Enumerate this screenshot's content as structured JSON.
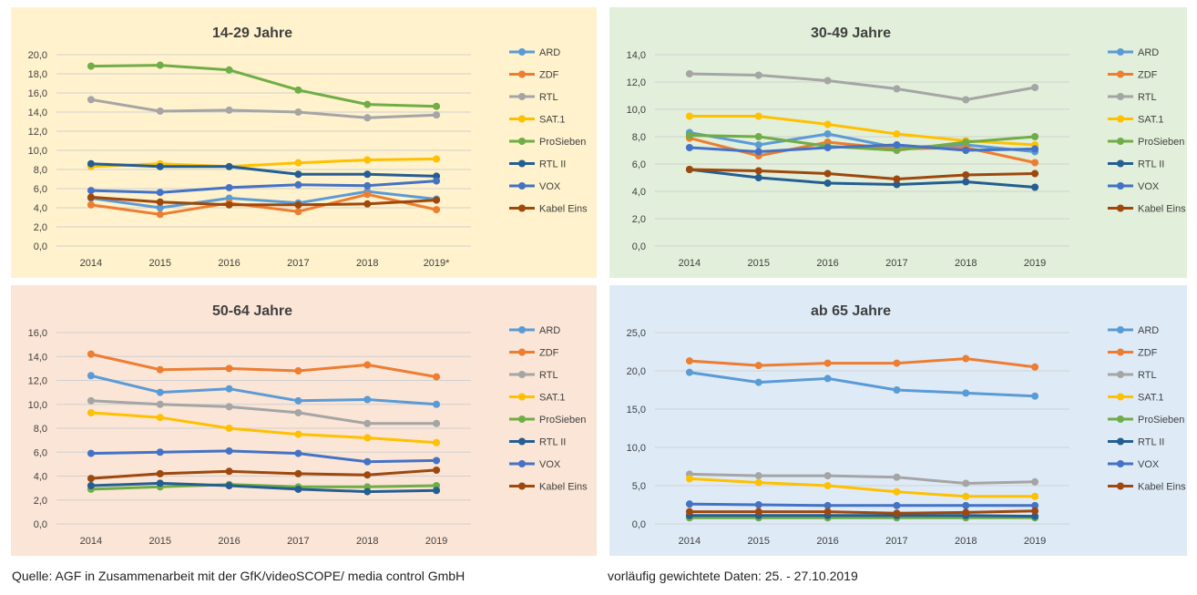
{
  "colors": {
    "ARD": "#5b9bd5",
    "ZDF": "#ed7d31",
    "RTL": "#a5a5a5",
    "SAT.1": "#ffc000",
    "ProSieben": "#70ad47",
    "RTL II": "#255e91",
    "VOX": "#4472c4",
    "Kabel Eins": "#9e480e"
  },
  "footer": {
    "source": "Quelle: AGF in Zusammenarbeit mit der GfK/videoSCOPE/ media control GmbH",
    "note": "vorläufig gewichtete Daten: 25. - 27.10.2019"
  },
  "chart_data": [
    {
      "type": "line",
      "title": "14-29 Jahre",
      "background": "#fff2cc",
      "categories": [
        "2014",
        "2015",
        "2016",
        "2017",
        "2018",
        "2019*"
      ],
      "ylim": [
        0,
        20
      ],
      "yticks": [
        "0,0",
        "2,0",
        "4,0",
        "6,0",
        "8,0",
        "10,0",
        "12,0",
        "14,0",
        "16,0",
        "18,0",
        "20,0"
      ],
      "xlabel": "",
      "ylabel": "",
      "legend_position": "right",
      "series": [
        {
          "name": "ARD",
          "values": [
            5.0,
            4.0,
            5.0,
            4.5,
            5.7,
            4.9
          ]
        },
        {
          "name": "ZDF",
          "values": [
            4.3,
            3.3,
            4.5,
            3.6,
            5.4,
            3.8
          ]
        },
        {
          "name": "RTL",
          "values": [
            15.3,
            14.1,
            14.2,
            14.0,
            13.4,
            13.7
          ]
        },
        {
          "name": "SAT.1",
          "values": [
            8.3,
            8.6,
            8.3,
            8.7,
            9.0,
            9.1
          ]
        },
        {
          "name": "ProSieben",
          "values": [
            18.8,
            18.9,
            18.4,
            16.3,
            14.8,
            14.6
          ]
        },
        {
          "name": "RTL II",
          "values": [
            8.6,
            8.3,
            8.3,
            7.5,
            7.5,
            7.3
          ]
        },
        {
          "name": "VOX",
          "values": [
            5.8,
            5.6,
            6.1,
            6.4,
            6.3,
            6.8
          ]
        },
        {
          "name": "Kabel Eins",
          "values": [
            5.1,
            4.6,
            4.3,
            4.3,
            4.4,
            4.8
          ]
        }
      ]
    },
    {
      "type": "line",
      "title": "30-49 Jahre",
      "background": "#e2efda",
      "categories": [
        "2014",
        "2015",
        "2016",
        "2017",
        "2018",
        "2019"
      ],
      "ylim": [
        0,
        14
      ],
      "yticks": [
        "0,0",
        "2,0",
        "4,0",
        "6,0",
        "8,0",
        "10,0",
        "12,0",
        "14,0"
      ],
      "xlabel": "",
      "ylabel": "",
      "legend_position": "right",
      "series": [
        {
          "name": "ARD",
          "values": [
            8.3,
            7.4,
            8.2,
            7.2,
            7.4,
            6.9
          ]
        },
        {
          "name": "ZDF",
          "values": [
            7.9,
            6.6,
            7.6,
            7.1,
            7.2,
            6.1
          ]
        },
        {
          "name": "RTL",
          "values": [
            12.6,
            12.5,
            12.1,
            11.5,
            10.7,
            11.6
          ]
        },
        {
          "name": "SAT.1",
          "values": [
            9.5,
            9.5,
            8.9,
            8.2,
            7.7,
            7.4
          ]
        },
        {
          "name": "ProSieben",
          "values": [
            8.1,
            8.0,
            7.3,
            7.0,
            7.6,
            8.0
          ]
        },
        {
          "name": "RTL II",
          "values": [
            5.6,
            5.0,
            4.6,
            4.5,
            4.7,
            4.3
          ]
        },
        {
          "name": "VOX",
          "values": [
            7.2,
            6.9,
            7.2,
            7.4,
            7.0,
            7.1
          ]
        },
        {
          "name": "Kabel Eins",
          "values": [
            5.6,
            5.5,
            5.3,
            4.9,
            5.2,
            5.3
          ]
        }
      ]
    },
    {
      "type": "line",
      "title": "50-64 Jahre",
      "background": "#fbe5d6",
      "categories": [
        "2014",
        "2015",
        "2016",
        "2017",
        "2018",
        "2019"
      ],
      "ylim": [
        0,
        16
      ],
      "yticks": [
        "0,0",
        "2,0",
        "4,0",
        "6,0",
        "8,0",
        "10,0",
        "12,0",
        "14,0",
        "16,0"
      ],
      "xlabel": "",
      "ylabel": "",
      "legend_position": "right",
      "series": [
        {
          "name": "ARD",
          "values": [
            12.4,
            11.0,
            11.3,
            10.3,
            10.4,
            10.0
          ]
        },
        {
          "name": "ZDF",
          "values": [
            14.2,
            12.9,
            13.0,
            12.8,
            13.3,
            12.3
          ]
        },
        {
          "name": "RTL",
          "values": [
            10.3,
            10.0,
            9.8,
            9.3,
            8.4,
            8.4
          ]
        },
        {
          "name": "SAT.1",
          "values": [
            9.3,
            8.9,
            8.0,
            7.5,
            7.2,
            6.8
          ]
        },
        {
          "name": "ProSieben",
          "values": [
            2.9,
            3.1,
            3.3,
            3.1,
            3.1,
            3.2
          ]
        },
        {
          "name": "RTL II",
          "values": [
            3.2,
            3.4,
            3.2,
            2.9,
            2.7,
            2.8
          ]
        },
        {
          "name": "VOX",
          "values": [
            5.9,
            6.0,
            6.1,
            5.9,
            5.2,
            5.3
          ]
        },
        {
          "name": "Kabel Eins",
          "values": [
            3.8,
            4.2,
            4.4,
            4.2,
            4.1,
            4.5
          ]
        }
      ]
    },
    {
      "type": "line",
      "title": "ab 65 Jahre",
      "background": "#deebf7",
      "categories": [
        "2014",
        "2015",
        "2016",
        "2017",
        "2018",
        "2019"
      ],
      "ylim": [
        0,
        25
      ],
      "yticks": [
        "0,0",
        "5,0",
        "10,0",
        "15,0",
        "20,0",
        "25,0"
      ],
      "xlabel": "",
      "ylabel": "",
      "legend_position": "right",
      "series": [
        {
          "name": "ARD",
          "values": [
            19.8,
            18.5,
            19.0,
            17.5,
            17.1,
            16.7
          ]
        },
        {
          "name": "ZDF",
          "values": [
            21.3,
            20.7,
            21.0,
            21.0,
            21.6,
            20.5
          ]
        },
        {
          "name": "RTL",
          "values": [
            6.5,
            6.3,
            6.3,
            6.1,
            5.3,
            5.5
          ]
        },
        {
          "name": "SAT.1",
          "values": [
            5.9,
            5.4,
            5.0,
            4.2,
            3.6,
            3.6
          ]
        },
        {
          "name": "ProSieben",
          "values": [
            0.8,
            0.8,
            0.8,
            0.8,
            0.8,
            0.8
          ]
        },
        {
          "name": "RTL II",
          "values": [
            1.1,
            1.1,
            1.1,
            1.1,
            1.1,
            1.0
          ]
        },
        {
          "name": "VOX",
          "values": [
            2.6,
            2.5,
            2.4,
            2.4,
            2.4,
            2.4
          ]
        },
        {
          "name": "Kabel Eins",
          "values": [
            1.6,
            1.6,
            1.6,
            1.4,
            1.5,
            1.7
          ]
        }
      ]
    }
  ]
}
